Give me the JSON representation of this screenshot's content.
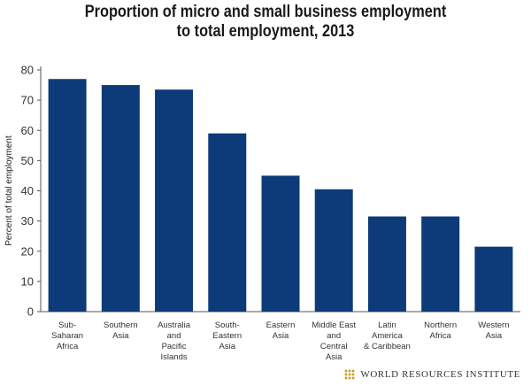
{
  "chart_data": {
    "type": "bar",
    "title_lines": [
      "Proportion of micro and small business employment",
      "to total employment, 2013"
    ],
    "ylabel": "Percent of total employment",
    "xlabel": "",
    "ylim": [
      0,
      80
    ],
    "yticks": [
      0,
      10,
      20,
      30,
      40,
      50,
      60,
      70,
      80
    ],
    "grid": false,
    "bar_color": "#0d3b7a",
    "categories": [
      [
        "Sub-",
        "Saharan",
        "Africa"
      ],
      [
        "Southern",
        "Asia"
      ],
      [
        "Australia",
        "and",
        "Pacific",
        "Islands"
      ],
      [
        "South-",
        "Eastern",
        "Asia"
      ],
      [
        "Eastern",
        "Asia"
      ],
      [
        "Middle East",
        "and",
        "Central",
        "Asia"
      ],
      [
        "Latin",
        "America",
        "& Caribbean"
      ],
      [
        "Northern",
        "Africa"
      ],
      [
        "Western",
        "Asia"
      ]
    ],
    "values": [
      77,
      75,
      73.5,
      59,
      45,
      40.5,
      31.5,
      31.5,
      21.5
    ]
  },
  "logo": {
    "text": "WORLD RESOURCES INSTITUTE",
    "icon": "wri-emblem-icon",
    "color": "#c9a227"
  }
}
